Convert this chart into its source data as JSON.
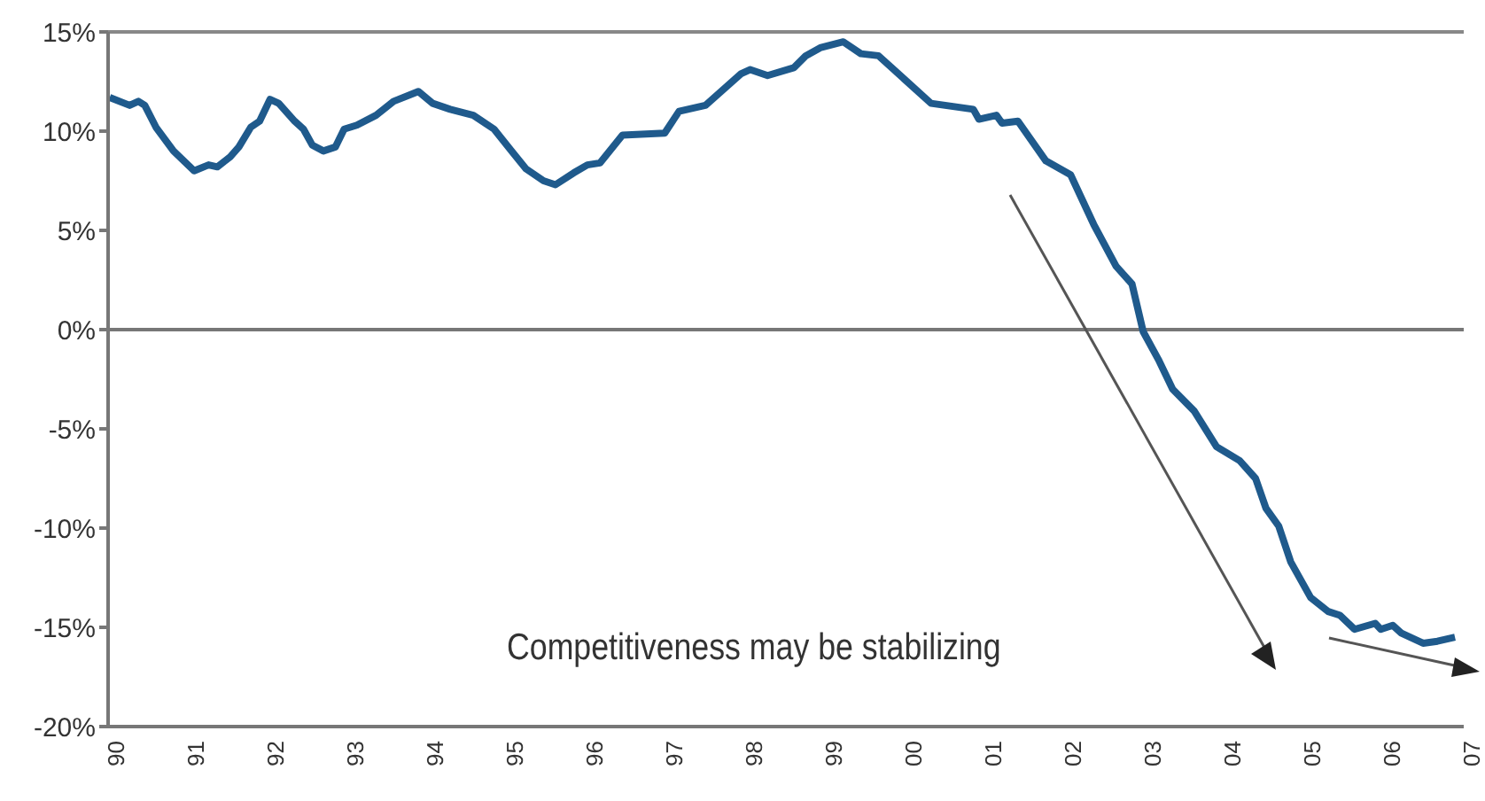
{
  "chart_data": {
    "type": "line",
    "x": [
      1990.02,
      1990.27,
      1990.38,
      1990.46,
      1990.6,
      1990.82,
      1991.08,
      1991.26,
      1991.37,
      1991.53,
      1991.64,
      1991.79,
      1991.9,
      1992.03,
      1992.14,
      1992.34,
      1992.45,
      1992.56,
      1992.7,
      1992.85,
      1992.96,
      1993.12,
      1993.36,
      1993.58,
      1993.89,
      1994.07,
      1994.29,
      1994.58,
      1994.84,
      1995.06,
      1995.24,
      1995.46,
      1995.61,
      1995.84,
      1996.01,
      1996.17,
      1996.45,
      1996.98,
      1997.16,
      1997.49,
      1997.94,
      1998.05,
      1998.27,
      1998.6,
      1998.75,
      1998.93,
      1999.22,
      1999.44,
      1999.66,
      1999.99,
      2000.32,
      2000.85,
      2000.92,
      2001.14,
      2001.21,
      2001.41,
      2001.76,
      2002.07,
      2002.36,
      2002.64,
      2002.84,
      2002.98,
      2003.17,
      2003.35,
      2003.62,
      2003.9,
      2004.19,
      2004.39,
      2004.52,
      2004.68,
      2004.83,
      2005.08,
      2005.3,
      2005.45,
      2005.63,
      2005.89,
      2005.96,
      2006.11,
      2006.22,
      2006.49,
      2006.67,
      2006.89
    ],
    "series": [
      {
        "color": "#1f5a8c",
        "values": [
          11.7,
          11.3,
          11.5,
          11.3,
          10.2,
          9.0,
          8.0,
          8.3,
          8.2,
          8.7,
          9.2,
          10.2,
          10.5,
          11.6,
          11.4,
          10.5,
          10.1,
          9.3,
          9.0,
          9.2,
          10.1,
          10.3,
          10.8,
          11.5,
          12.0,
          11.4,
          11.1,
          10.8,
          10.1,
          9.0,
          8.1,
          7.5,
          7.3,
          7.9,
          8.3,
          8.4,
          9.8,
          9.9,
          11.0,
          11.3,
          12.9,
          13.1,
          12.8,
          13.2,
          13.8,
          14.2,
          14.5,
          13.9,
          13.8,
          12.6,
          11.4,
          11.1,
          10.6,
          10.8,
          10.4,
          10.5,
          8.5,
          7.8,
          5.3,
          3.2,
          2.3,
          -0.1,
          -1.5,
          -3.0,
          -4.1,
          -5.9,
          -6.6,
          -7.5,
          -9.0,
          -9.9,
          -11.7,
          -13.5,
          -14.2,
          -14.4,
          -15.1,
          -14.8,
          -15.1,
          -14.9,
          -15.3,
          -15.8,
          -15.7,
          -15.5
        ]
      }
    ],
    "xlim": [
      1990,
      2007
    ],
    "xticks": [
      {
        "value": 1990,
        "label": "90"
      },
      {
        "value": 1991,
        "label": "91"
      },
      {
        "value": 1992,
        "label": "92"
      },
      {
        "value": 1993,
        "label": "93"
      },
      {
        "value": 1994,
        "label": "94"
      },
      {
        "value": 1995,
        "label": "95"
      },
      {
        "value": 1996,
        "label": "96"
      },
      {
        "value": 1997,
        "label": "97"
      },
      {
        "value": 1998,
        "label": "98"
      },
      {
        "value": 1999,
        "label": "99"
      },
      {
        "value": 2000,
        "label": "00"
      },
      {
        "value": 2001,
        "label": "01"
      },
      {
        "value": 2002,
        "label": "02"
      },
      {
        "value": 2003,
        "label": "03"
      },
      {
        "value": 2004,
        "label": "04"
      },
      {
        "value": 2005,
        "label": "05"
      },
      {
        "value": 2006,
        "label": "06"
      },
      {
        "value": 2007,
        "label": "07"
      }
    ],
    "ylim": [
      -20,
      15
    ],
    "yticks": [
      {
        "value": 15,
        "label": "15%"
      },
      {
        "value": 10,
        "label": "10%"
      },
      {
        "value": 5,
        "label": "5%"
      },
      {
        "value": 0,
        "label": "0%"
      },
      {
        "value": -5,
        "label": "-5%"
      },
      {
        "value": -10,
        "label": "-10%"
      },
      {
        "value": -15,
        "label": "-15%"
      },
      {
        "value": -20,
        "label": "-20%"
      }
    ],
    "ref_lines": [
      {
        "axis": "y",
        "value": 0,
        "color": "#777777"
      }
    ],
    "annotations": [
      "Competitiveness may be stabilizing"
    ],
    "grid": false,
    "legend": false,
    "marker": "none",
    "line_style": "solid"
  }
}
